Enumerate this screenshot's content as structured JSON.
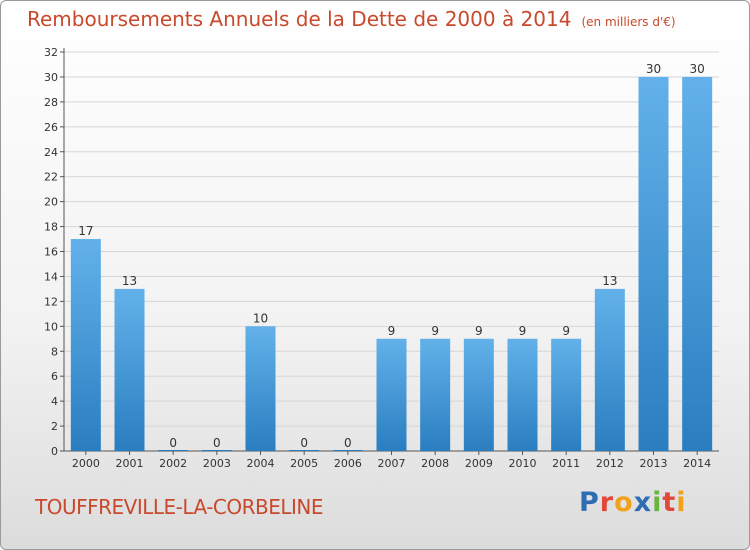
{
  "header": {
    "title": "Remboursements Annuels de la Dette de 2000 à 2014",
    "unit": "(en milliers d'€)"
  },
  "footer": {
    "commune": "TOUFFREVILLE-LA-CORBELINE",
    "logo": {
      "letters": [
        "P",
        "r",
        "o",
        "x",
        "i",
        "t",
        "i"
      ],
      "colors": [
        "#2f6db3",
        "#e0483a",
        "#f0a21a",
        "#2f6db3",
        "#6ab33f",
        "#e0483a",
        "#f0a21a"
      ]
    }
  },
  "chart_data": {
    "type": "bar",
    "categories": [
      "2000",
      "2001",
      "2002",
      "2003",
      "2004",
      "2005",
      "2006",
      "2007",
      "2008",
      "2009",
      "2010",
      "2011",
      "2012",
      "2013",
      "2014"
    ],
    "values": [
      17,
      13,
      0,
      0,
      10,
      0,
      0,
      9,
      9,
      9,
      9,
      9,
      13,
      30,
      30
    ],
    "data_labels": [
      "17",
      "13",
      "0",
      "0",
      "10",
      "0",
      "0",
      "9",
      "9",
      "9",
      "9",
      "9",
      "13",
      "30",
      "30"
    ],
    "ylim": [
      0,
      32
    ],
    "yticks": [
      "0",
      "2",
      "4",
      "6",
      "8",
      "10",
      "12",
      "14",
      "16",
      "18",
      "20",
      "22",
      "24",
      "26",
      "28",
      "30",
      "32"
    ],
    "grid": true,
    "colors": {
      "bar_top": "#62b1ea",
      "bar_bottom": "#2a7ec0",
      "grid": "#d6d6d6"
    }
  }
}
